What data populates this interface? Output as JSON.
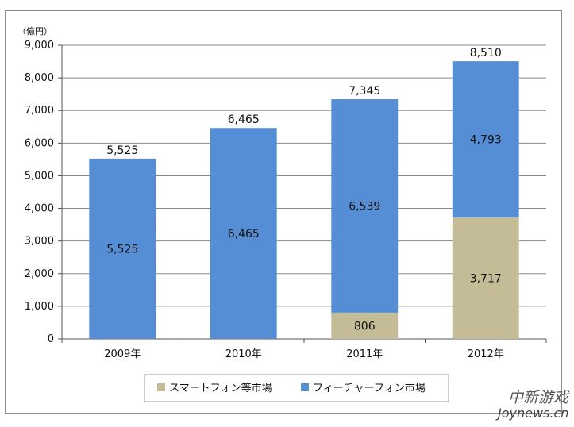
{
  "chart_data": {
    "type": "bar",
    "stacked": true,
    "unit_label": "（億円）",
    "categories": [
      "2009年",
      "2010年",
      "2011年",
      "2012年"
    ],
    "series": [
      {
        "name": "スマートフォン等市場",
        "color": "#c4bc96",
        "values": [
          0,
          0,
          806,
          3717
        ],
        "labels": [
          "",
          "",
          "806",
          "3,717"
        ]
      },
      {
        "name": "フィーチャーフォン市場",
        "color": "#558ed5",
        "values": [
          5525,
          6465,
          6539,
          4793
        ],
        "labels": [
          "5,525",
          "6,465",
          "6,539",
          "4,793"
        ]
      }
    ],
    "totals": [
      5525,
      6465,
      7345,
      8510
    ],
    "total_labels": [
      "5,525",
      "6,465",
      "7,345",
      "8,510"
    ],
    "ylim": [
      0,
      9000
    ],
    "yticks": [
      "0",
      "1,000",
      "2,000",
      "3,000",
      "4,000",
      "5,000",
      "6,000",
      "7,000",
      "8,000",
      "9,000"
    ],
    "grid": true,
    "legend_position": "bottom"
  },
  "watermark": {
    "line1": "中新游戏",
    "line2": "Joynews.cn"
  }
}
